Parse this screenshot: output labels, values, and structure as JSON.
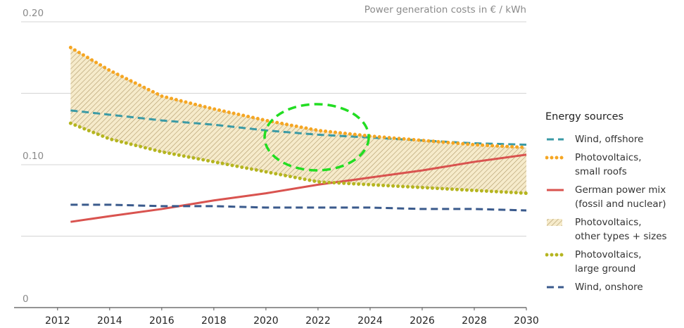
{
  "chart_data": {
    "type": "line",
    "y_label": "Power generation costs in € / kWh",
    "x": [
      2012.5,
      2014,
      2016,
      2018,
      2020,
      2022,
      2024,
      2026,
      2028,
      2030
    ],
    "xlim": [
      2010.6,
      2030
    ],
    "xticks": [
      2012,
      2014,
      2016,
      2018,
      2020,
      2022,
      2024,
      2026,
      2028,
      2030
    ],
    "ylim": [
      0,
      0.2
    ],
    "yticks": [
      0,
      {
        "value": 0.1,
        "label": "0.10"
      },
      {
        "value": 0.2,
        "label": "0.20"
      }
    ],
    "ygrid": [
      0.05,
      0.1,
      0.15,
      0.2
    ],
    "legend_title": "Energy sources",
    "series": [
      {
        "name": "Wind, offshore",
        "color": "#3a9aa5",
        "style": "dashed",
        "values": [
          0.138,
          0.135,
          0.131,
          0.128,
          0.124,
          0.121,
          0.119,
          0.117,
          0.115,
          0.114
        ]
      },
      {
        "name": "Photovoltaics,\nsmall roofs",
        "color": "#f5a623",
        "style": "dotted",
        "values": [
          0.182,
          0.166,
          0.148,
          0.139,
          0.131,
          0.124,
          0.12,
          0.117,
          0.114,
          0.112
        ]
      },
      {
        "name": "German power mix\n(fossil and nuclear)",
        "color": "#d9534f",
        "style": "solid",
        "values": [
          0.06,
          0.064,
          0.069,
          0.075,
          0.08,
          0.086,
          0.091,
          0.096,
          0.102,
          0.107
        ]
      },
      {
        "name": "Photovoltaics,\nother types + sizes",
        "color": "#b09a6a",
        "style": "hatch",
        "between": [
          1,
          4
        ]
      },
      {
        "name": "Photovoltaics,\nlarge ground",
        "color": "#b5b520",
        "style": "dotted",
        "values": [
          0.129,
          0.118,
          0.109,
          0.102,
          0.095,
          0.088,
          0.086,
          0.084,
          0.082,
          0.08
        ]
      },
      {
        "name": "Wind, onshore",
        "color": "#3a5a8c",
        "style": "dashed",
        "values": [
          0.072,
          0.072,
          0.071,
          0.071,
          0.07,
          0.07,
          0.07,
          0.069,
          0.069,
          0.068
        ]
      }
    ]
  }
}
